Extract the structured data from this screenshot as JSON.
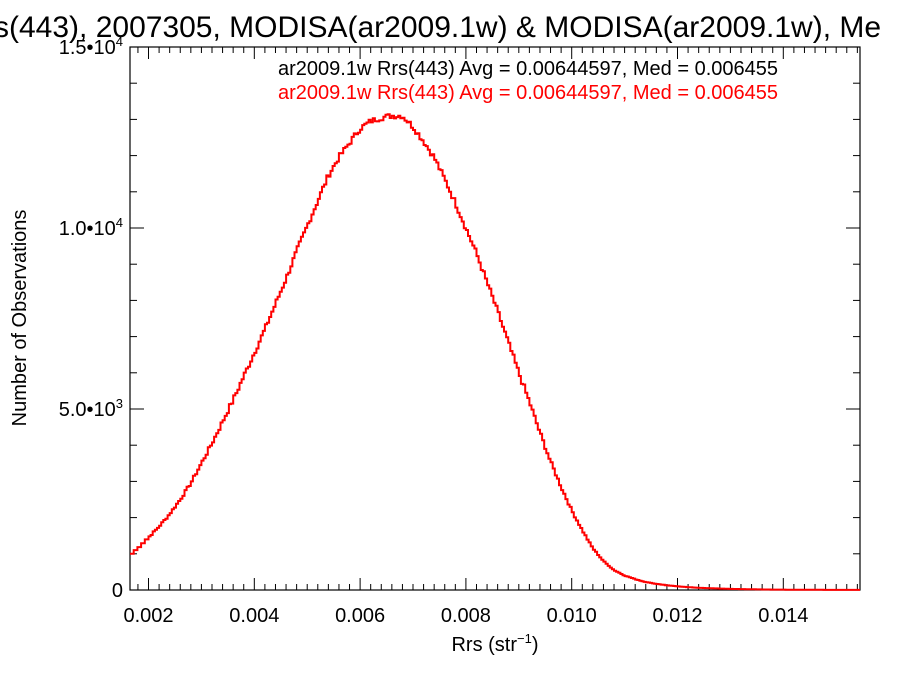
{
  "chart_data": {
    "type": "line",
    "title": "s(443), 2007305, MODISA(ar2009.1w) & MODISA(ar2009.1w), Me",
    "xlabel": "Rrs (str",
    "xlabel_sup": "−1",
    "xlabel_end": ")",
    "ylabel": "Number of Observations",
    "xlim": [
      0.00165,
      0.01545
    ],
    "ylim": [
      0,
      15000
    ],
    "x_ticks": [
      {
        "value": 0.002,
        "label": "0.002"
      },
      {
        "value": 0.004,
        "label": "0.004"
      },
      {
        "value": 0.006,
        "label": "0.006"
      },
      {
        "value": 0.008,
        "label": "0.008"
      },
      {
        "value": 0.01,
        "label": "0.010"
      },
      {
        "value": 0.012,
        "label": "0.012"
      },
      {
        "value": 0.014,
        "label": "0.014"
      }
    ],
    "y_ticks": [
      {
        "value": 0,
        "label": "0",
        "exp": ""
      },
      {
        "value": 5000,
        "label": "5.0•10",
        "exp": "3"
      },
      {
        "value": 10000,
        "label": "1.0•10",
        "exp": "4"
      },
      {
        "value": 15000,
        "label": "1.5•10",
        "exp": "4"
      }
    ],
    "grid": false,
    "legend": [
      {
        "text": "ar2009.1w Rrs(443) Avg = 0.00644597, Med = 0.006455",
        "color": "#000000"
      },
      {
        "text": "ar2009.1w Rrs(443) Avg = 0.00644597, Med = 0.006455",
        "color": "#ff0000"
      }
    ],
    "series": [
      {
        "color": "#ff0000",
        "step": true,
        "x": [
          0.00165,
          0.002,
          0.0022,
          0.0024,
          0.0026,
          0.0028,
          0.003,
          0.0032,
          0.0034,
          0.0036,
          0.0038,
          0.004,
          0.0042,
          0.0044,
          0.0046,
          0.0048,
          0.005,
          0.0052,
          0.0054,
          0.0056,
          0.0058,
          0.006,
          0.0062,
          0.0064,
          0.0066,
          0.0068,
          0.007,
          0.0072,
          0.0074,
          0.0076,
          0.0078,
          0.008,
          0.0082,
          0.0084,
          0.0086,
          0.0088,
          0.009,
          0.0092,
          0.0094,
          0.0096,
          0.0098,
          0.01,
          0.0102,
          0.0104,
          0.0106,
          0.0108,
          0.011,
          0.0112,
          0.0114,
          0.0116,
          0.0118,
          0.012,
          0.0122,
          0.0124,
          0.0126,
          0.0128,
          0.013,
          0.0132,
          0.0134,
          0.0136,
          0.0138,
          0.014,
          0.0142,
          0.0144,
          0.0146,
          0.0148,
          0.015,
          0.0152,
          0.01545
        ],
        "values": [
          950,
          1450,
          1750,
          2100,
          2500,
          2950,
          3500,
          4050,
          4650,
          5250,
          5900,
          6550,
          7200,
          7900,
          8600,
          9350,
          10050,
          10750,
          11450,
          11950,
          12350,
          12750,
          12950,
          13050,
          13100,
          13100,
          12800,
          12400,
          11950,
          11350,
          10700,
          10000,
          9300,
          8500,
          7700,
          6850,
          6000,
          5200,
          4350,
          3550,
          2850,
          2200,
          1650,
          1150,
          800,
          550,
          400,
          300,
          220,
          170,
          130,
          100,
          80,
          60,
          50,
          40,
          30,
          25,
          20,
          15,
          12,
          10,
          8,
          6,
          5,
          4,
          3,
          2,
          2
        ]
      }
    ]
  }
}
